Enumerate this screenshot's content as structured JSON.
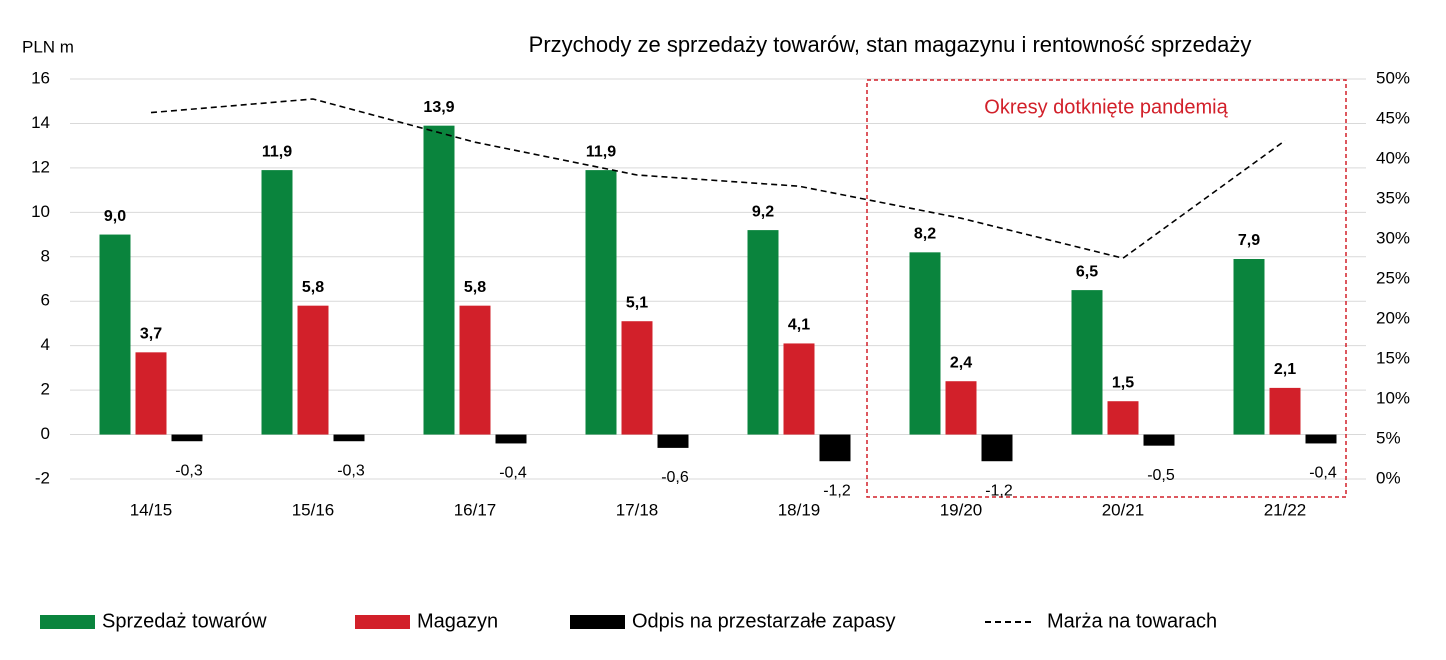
{
  "chart_data": {
    "type": "bar",
    "title": "Przychody ze sprzedaży towarów, stan magazynu i rentowność sprzedaży",
    "y_label": "PLN m",
    "annotation": "Okresy dotknięte pandemią",
    "annotation_color": "#d2202a",
    "categories": [
      "14/15",
      "15/16",
      "16/17",
      "17/18",
      "18/19",
      "19/20",
      "20/21",
      "21/22"
    ],
    "series": [
      {
        "name": "Sprzedaż towarów",
        "type": "bar",
        "color": "#0a843d",
        "values": [
          9.0,
          11.9,
          13.9,
          11.9,
          9.2,
          8.2,
          6.5,
          7.9
        ],
        "value_labels": [
          "9,0",
          "11,9",
          "13,9",
          "11,9",
          "9,2",
          "8,2",
          "6,5",
          "7,9"
        ]
      },
      {
        "name": "Magazyn",
        "type": "bar",
        "color": "#d2202a",
        "values": [
          3.7,
          5.8,
          5.8,
          5.1,
          4.1,
          2.4,
          1.5,
          2.1
        ],
        "value_labels": [
          "3,7",
          "5,8",
          "5,8",
          "5,1",
          "4,1",
          "2,4",
          "1,5",
          "2,1"
        ]
      },
      {
        "name": "Odpis na przestarzałe zapasy",
        "type": "bar",
        "color": "#000000",
        "values": [
          -0.3,
          -0.3,
          -0.4,
          -0.6,
          -1.2,
          -1.2,
          -0.5,
          -0.4
        ],
        "value_labels": [
          "-0,3",
          "-0,3",
          "-0,4",
          "-0,6",
          "-1,2",
          "-1,2",
          "-0,5",
          "-0,4"
        ]
      },
      {
        "name": "Marża na towarach",
        "type": "line",
        "dashed": true,
        "axis": "y2",
        "color": "#000000",
        "values": [
          45.8,
          47.5,
          42.1,
          38.0,
          36.6,
          32.6,
          27.6,
          42.3
        ]
      }
    ],
    "ylim": [
      -2,
      16
    ],
    "yticks": [
      -2,
      0,
      2,
      4,
      6,
      8,
      10,
      12,
      14,
      16
    ],
    "y2lim": [
      0,
      50
    ],
    "y2ticks": [
      {
        "value": 0,
        "label": "0%"
      },
      {
        "value": 5,
        "label": "5%"
      },
      {
        "value": 10,
        "label": "10%"
      },
      {
        "value": 15,
        "label": "15%"
      },
      {
        "value": 20,
        "label": "20%"
      },
      {
        "value": 25,
        "label": "25%"
      },
      {
        "value": 30,
        "label": "30%"
      },
      {
        "value": 35,
        "label": "35%"
      },
      {
        "value": 40,
        "label": "40%"
      },
      {
        "value": 45,
        "label": "45%"
      },
      {
        "value": 50,
        "label": "50%"
      }
    ],
    "grid": true
  }
}
